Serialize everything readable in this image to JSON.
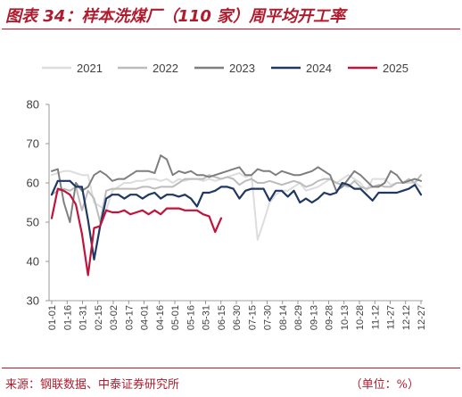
{
  "header": {
    "title": "图表 34：样本洗煤厂（110 家）周平均开工率"
  },
  "footer": {
    "source": "来源：钢联数据、中泰证券研究所",
    "unit": "（单位：%）"
  },
  "chart_data": {
    "type": "line",
    "title": "图表 34：样本洗煤厂（110 家）周平均开工率",
    "ylim": [
      30,
      80
    ],
    "yticks": [
      30,
      40,
      50,
      60,
      70,
      80
    ],
    "grid": false,
    "legend_position": "top",
    "x_tick_labels": [
      "01-01",
      "01-16",
      "01-31",
      "02-15",
      "03-02",
      "03-17",
      "04-01",
      "04-16",
      "05-01",
      "05-16",
      "05-31",
      "06-15",
      "06-30",
      "07-15",
      "07-30",
      "08-14",
      "08-29",
      "09-13",
      "09-28",
      "10-13",
      "10-28",
      "11-12",
      "11-27",
      "12-12",
      "12-27"
    ],
    "series": [
      {
        "name": "2021",
        "color": "#dddddd",
        "values": [
          62,
          62.5,
          63,
          63,
          62.5,
          62,
          62,
          55,
          54,
          53,
          58,
          59,
          60,
          60,
          60.5,
          60.5,
          61,
          61,
          60.5,
          61,
          60,
          61,
          60.5,
          61,
          61,
          60.5,
          61,
          60.5,
          61,
          61.5,
          62,
          62.5,
          61.5,
          62,
          45.5,
          50,
          55,
          57,
          58,
          58,
          59,
          60,
          58,
          58.5,
          59,
          60,
          61,
          60,
          61,
          62,
          61,
          60,
          58,
          61,
          61,
          61,
          59.5,
          60,
          60,
          60,
          60,
          59
        ]
      },
      {
        "name": "2022",
        "color": "#bcbcbc",
        "values": [
          57,
          58,
          58.5,
          58,
          59,
          53,
          58,
          56,
          50,
          58,
          58.5,
          58.5,
          58.5,
          58.5,
          58.5,
          59,
          59,
          58.5,
          59,
          59,
          59,
          60,
          61,
          61,
          61,
          61,
          62,
          61.5,
          61,
          61.5,
          61,
          59.5,
          60.5,
          61,
          60,
          60,
          60.5,
          60,
          59.5,
          60,
          60.5,
          60,
          59,
          59.5,
          60.5,
          61,
          61,
          60,
          59.5,
          59,
          60.5,
          59,
          58.5,
          59,
          59.5,
          59,
          59,
          60,
          60,
          61,
          60,
          62
        ]
      },
      {
        "name": "2023",
        "color": "#7f7f7f",
        "values": [
          63,
          63.5,
          55,
          50,
          60,
          58,
          59,
          62,
          63,
          62,
          60.5,
          61,
          61,
          62,
          63,
          63,
          63,
          62.5,
          67,
          66,
          62,
          63,
          62.5,
          63,
          62,
          62,
          61.5,
          62,
          62.5,
          63,
          63.5,
          64,
          62,
          62,
          63.5,
          63,
          63,
          62,
          63,
          62.5,
          62,
          62,
          62.5,
          63,
          64,
          63,
          62,
          58,
          59,
          61,
          63,
          62,
          60.5,
          59,
          59,
          60,
          63,
          62,
          60,
          60.5,
          61,
          60.5
        ]
      },
      {
        "name": "2024",
        "color": "#1f3864",
        "values": [
          57,
          60.5,
          60.5,
          60.5,
          59,
          59,
          50.5,
          40.5,
          49,
          56,
          57,
          57,
          56,
          57,
          57,
          56,
          57,
          57.5,
          56,
          57,
          57,
          56.5,
          57,
          56,
          54,
          57.5,
          57.5,
          58,
          59,
          59,
          58.5,
          56,
          58,
          58.5,
          58.5,
          58.5,
          55.5,
          58,
          58,
          56.5,
          58,
          55,
          56,
          55,
          56,
          57.5,
          57,
          57.5,
          60,
          59.5,
          58.5,
          58.5,
          57,
          55.5,
          57.5,
          57.5,
          57.5,
          57.5,
          58,
          58.5,
          59.5,
          57
        ]
      },
      {
        "name": "2025",
        "color": "#c0143c",
        "values": [
          51,
          58.5,
          58,
          57,
          54.5,
          47,
          36.5,
          48.5,
          49,
          53,
          52.5,
          52.5,
          53,
          52,
          52.5,
          53,
          52,
          53,
          52,
          53.5,
          53.5,
          53.5,
          53,
          53,
          53,
          52,
          51.5,
          47.5,
          51
        ]
      }
    ]
  }
}
